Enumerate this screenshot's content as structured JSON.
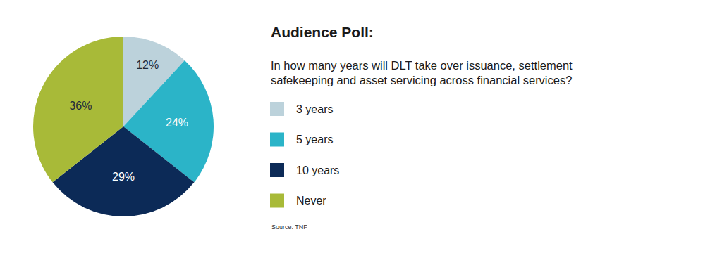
{
  "chart_data": {
    "type": "pie",
    "title": "Audience Poll:",
    "subtitle": "In how many years will DLT take over issuance, settlement safekeeping and asset servicing across financial services?",
    "categories": [
      "3 years",
      "5 years",
      "10 years",
      "Never"
    ],
    "values": [
      12,
      24,
      29,
      36
    ],
    "value_labels": [
      "12%",
      "24%",
      "29%",
      "36%"
    ],
    "colors": [
      "#bcd2db",
      "#2bb4c8",
      "#0c2a57",
      "#a8ba38"
    ],
    "data_labels": true,
    "legend": "right",
    "annotations": [
      "Source: TNF"
    ]
  }
}
